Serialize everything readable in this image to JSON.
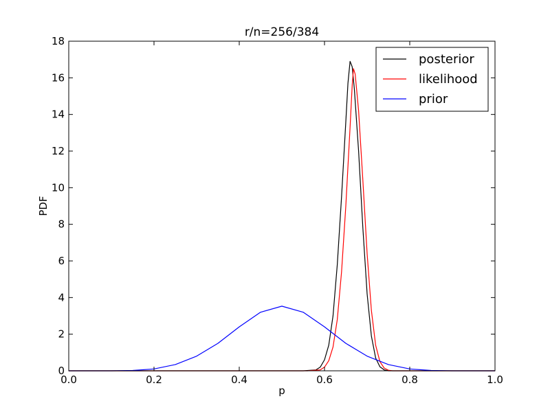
{
  "chart_data": {
    "type": "line",
    "title": "r/n=256/384",
    "xlabel": "p",
    "ylabel": "PDF",
    "xlim": [
      0.0,
      1.0
    ],
    "ylim": [
      0,
      18
    ],
    "x_ticks": [
      "0.0",
      "0.2",
      "0.4",
      "0.6",
      "0.8",
      "1.0"
    ],
    "y_ticks": [
      "0",
      "2",
      "4",
      "6",
      "8",
      "10",
      "12",
      "14",
      "16",
      "18"
    ],
    "grid": false,
    "legend_position": "top-right",
    "series": [
      {
        "name": "posterior",
        "color": "#000000",
        "points": [
          [
            0.0,
            0
          ],
          [
            0.55,
            0.0
          ],
          [
            0.58,
            0.05
          ],
          [
            0.59,
            0.2
          ],
          [
            0.6,
            0.6
          ],
          [
            0.61,
            1.4
          ],
          [
            0.62,
            3.0
          ],
          [
            0.63,
            5.8
          ],
          [
            0.64,
            9.5
          ],
          [
            0.65,
            13.6
          ],
          [
            0.655,
            15.7
          ],
          [
            0.66,
            16.9
          ],
          [
            0.665,
            16.6
          ],
          [
            0.67,
            15.4
          ],
          [
            0.68,
            12.0
          ],
          [
            0.69,
            7.8
          ],
          [
            0.7,
            4.2
          ],
          [
            0.71,
            1.9
          ],
          [
            0.72,
            0.7
          ],
          [
            0.73,
            0.22
          ],
          [
            0.74,
            0.05
          ],
          [
            0.75,
            0.0
          ],
          [
            1.0,
            0
          ]
        ]
      },
      {
        "name": "likelihood",
        "color": "#ff0000",
        "points": [
          [
            0.0,
            0
          ],
          [
            0.56,
            0.0
          ],
          [
            0.59,
            0.05
          ],
          [
            0.6,
            0.2
          ],
          [
            0.61,
            0.55
          ],
          [
            0.62,
            1.3
          ],
          [
            0.63,
            2.8
          ],
          [
            0.64,
            5.4
          ],
          [
            0.65,
            9.0
          ],
          [
            0.66,
            13.3
          ],
          [
            0.665,
            15.6
          ],
          [
            0.668,
            16.5
          ],
          [
            0.672,
            16.2
          ],
          [
            0.68,
            14.2
          ],
          [
            0.69,
            10.4
          ],
          [
            0.7,
            6.4
          ],
          [
            0.71,
            3.3
          ],
          [
            0.72,
            1.4
          ],
          [
            0.73,
            0.5
          ],
          [
            0.74,
            0.15
          ],
          [
            0.75,
            0.03
          ],
          [
            0.76,
            0.0
          ],
          [
            1.0,
            0
          ]
        ]
      },
      {
        "name": "prior",
        "color": "#0000ff",
        "points": [
          [
            0.0,
            0.0
          ],
          [
            0.1,
            0.0
          ],
          [
            0.15,
            0.02
          ],
          [
            0.2,
            0.1
          ],
          [
            0.25,
            0.34
          ],
          [
            0.3,
            0.8
          ],
          [
            0.35,
            1.5
          ],
          [
            0.4,
            2.4
          ],
          [
            0.45,
            3.2
          ],
          [
            0.5,
            3.53
          ],
          [
            0.55,
            3.2
          ],
          [
            0.6,
            2.4
          ],
          [
            0.65,
            1.5
          ],
          [
            0.7,
            0.8
          ],
          [
            0.75,
            0.34
          ],
          [
            0.8,
            0.1
          ],
          [
            0.85,
            0.02
          ],
          [
            0.9,
            0.0
          ],
          [
            1.0,
            0.0
          ]
        ]
      }
    ]
  }
}
